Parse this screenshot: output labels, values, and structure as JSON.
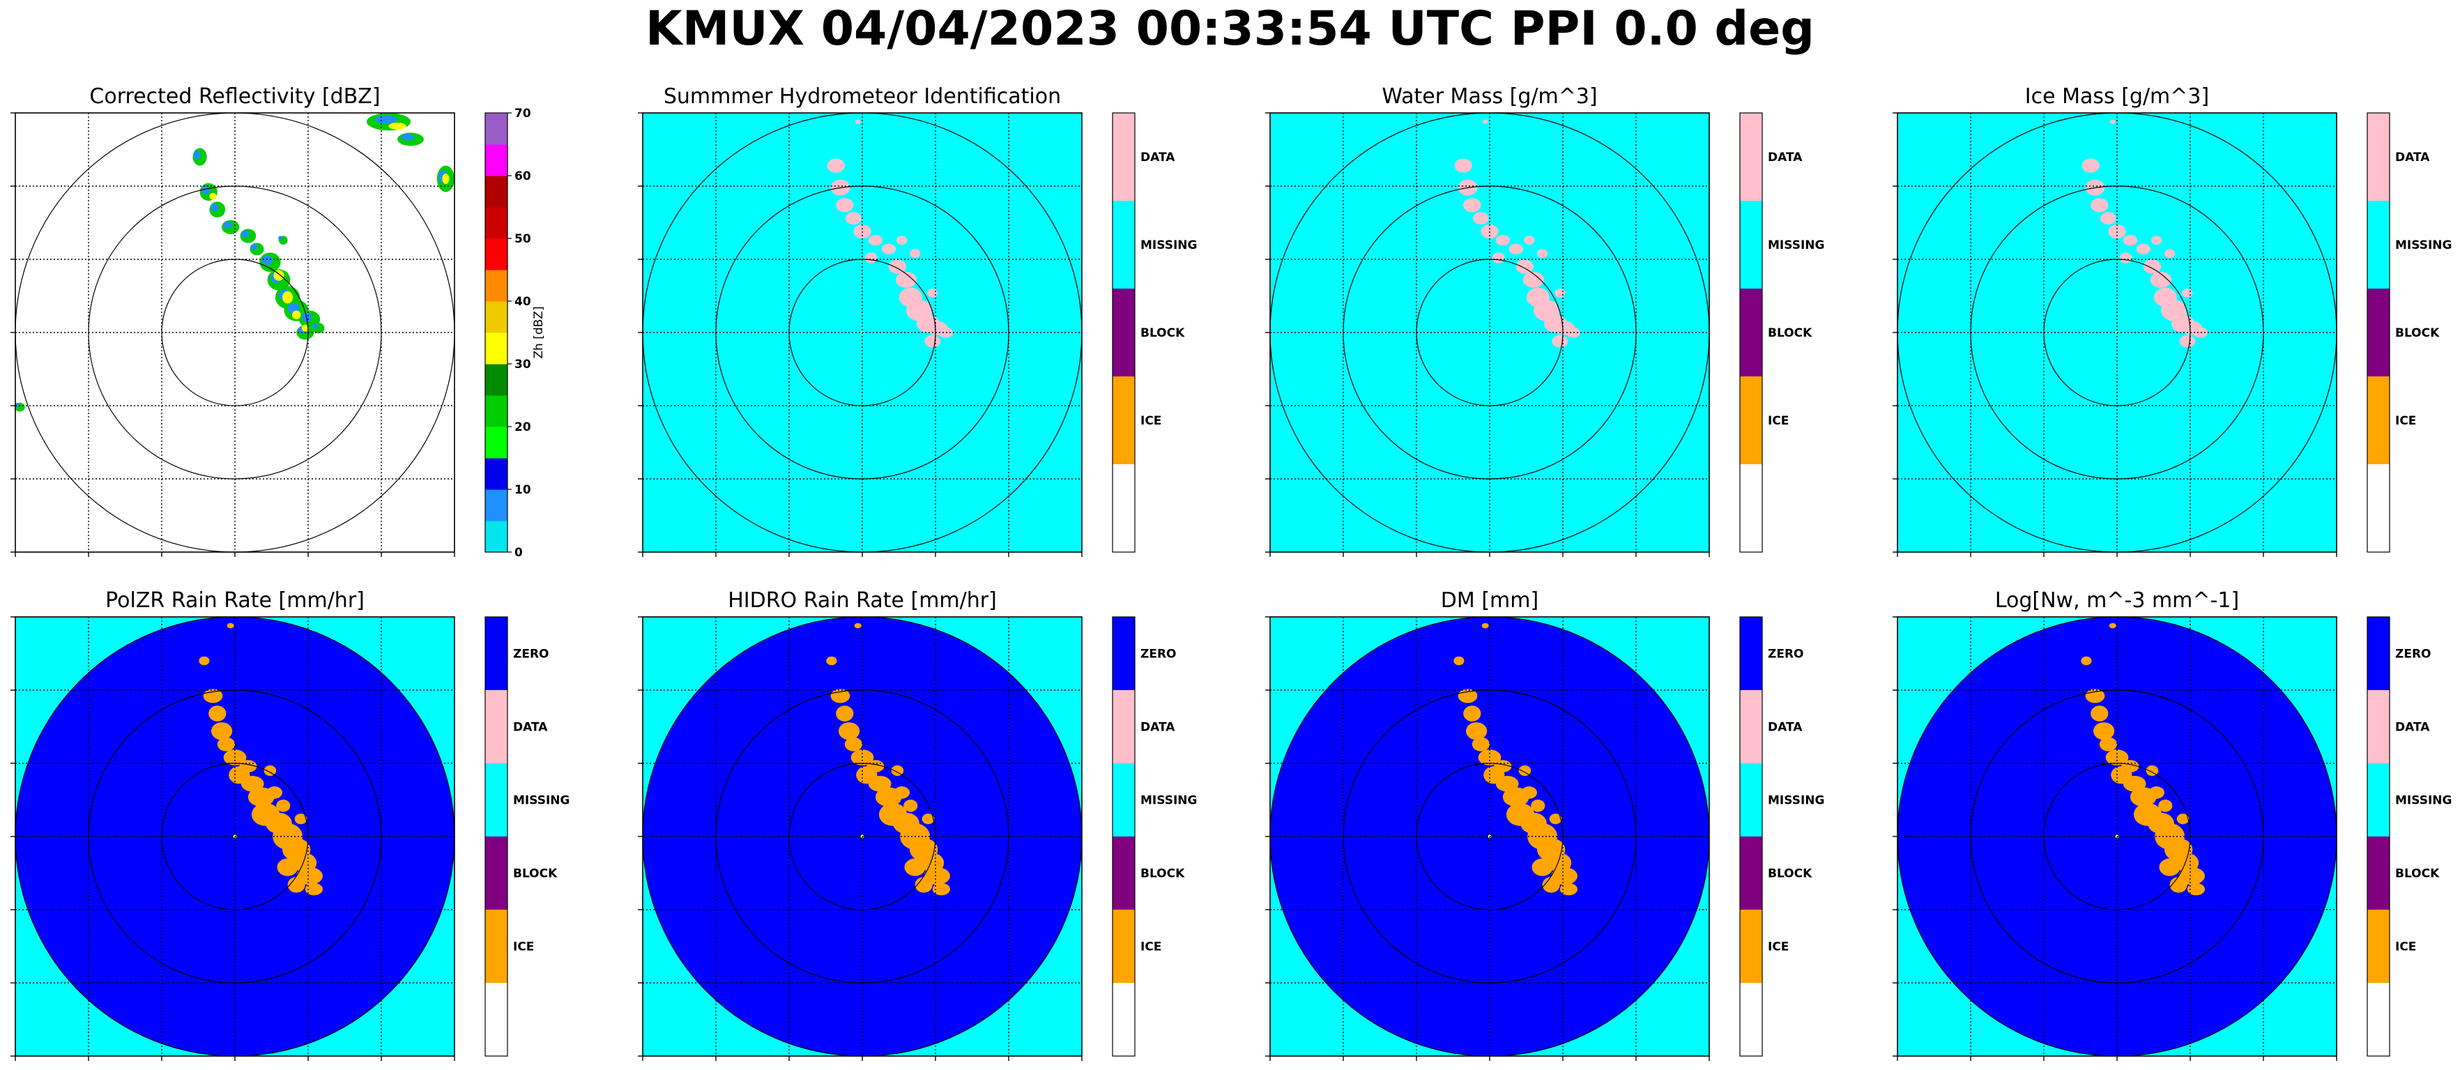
{
  "figure": {
    "title": "KMUX 04/04/2023 00:33:54 UTC PPI 0.0 deg"
  },
  "colors": {
    "missing": "#00FFFF",
    "zero": "#0000FF",
    "data": "#FFC0CB",
    "block": "#800080",
    "ice": "#FFA500",
    "blank": "#FFFFFF",
    "rain_echo": "#FFA500"
  },
  "chart_data": [
    {
      "type": "heatmap",
      "title": "Corrected Reflectivity [dBZ]",
      "variable": "reflectivity",
      "background": "#FFFFFF",
      "colorbar": {
        "kind": "continuous",
        "label": "Zh [dBZ]",
        "range": [
          0,
          70
        ],
        "ticks": [
          "0",
          "10",
          "20",
          "30",
          "40",
          "50",
          "60",
          "70"
        ],
        "bins": [
          {
            "from": 0,
            "to": 5,
            "color": "#00E5EE"
          },
          {
            "from": 5,
            "to": 10,
            "color": "#1E90FF"
          },
          {
            "from": 10,
            "to": 15,
            "color": "#0000EE"
          },
          {
            "from": 15,
            "to": 20,
            "color": "#00FF00"
          },
          {
            "from": 20,
            "to": 25,
            "color": "#00CD00"
          },
          {
            "from": 25,
            "to": 30,
            "color": "#008B00"
          },
          {
            "from": 30,
            "to": 35,
            "color": "#FFFF00"
          },
          {
            "from": 35,
            "to": 40,
            "color": "#EEC900"
          },
          {
            "from": 40,
            "to": 45,
            "color": "#FF8C00"
          },
          {
            "from": 45,
            "to": 50,
            "color": "#FF0000"
          },
          {
            "from": 50,
            "to": 55,
            "color": "#CD0000"
          },
          {
            "from": 55,
            "to": 60,
            "color": "#B00000"
          },
          {
            "from": 60,
            "to": 65,
            "color": "#FF00FF"
          },
          {
            "from": 65,
            "to": 70,
            "color": "#9A5CC6"
          }
        ]
      },
      "grid": true,
      "range_rings": 3
    },
    {
      "type": "heatmap",
      "title": "Summmer Hydrometeor Identification",
      "variable": "hid",
      "background": "#00FFFF",
      "colorbar": {
        "kind": "categorical",
        "categories": [
          {
            "label": "DATA",
            "color": "#FFC0CB"
          },
          {
            "label": "MISSING",
            "color": "#00FFFF"
          },
          {
            "label": "BLOCK",
            "color": "#800080"
          },
          {
            "label": "ICE",
            "color": "#FFA500"
          },
          {
            "label": "",
            "color": "#FFFFFF"
          }
        ]
      },
      "grid": true,
      "range_rings": 3
    },
    {
      "type": "heatmap",
      "title": "Water Mass [g/m^3]",
      "variable": "water_mass",
      "background": "#00FFFF",
      "colorbar": {
        "kind": "categorical",
        "categories": [
          {
            "label": "DATA",
            "color": "#FFC0CB"
          },
          {
            "label": "MISSING",
            "color": "#00FFFF"
          },
          {
            "label": "BLOCK",
            "color": "#800080"
          },
          {
            "label": "ICE",
            "color": "#FFA500"
          },
          {
            "label": "",
            "color": "#FFFFFF"
          }
        ]
      },
      "grid": true,
      "range_rings": 3
    },
    {
      "type": "heatmap",
      "title": "Ice Mass [g/m^3]",
      "variable": "ice_mass",
      "background": "#00FFFF",
      "colorbar": {
        "kind": "categorical",
        "categories": [
          {
            "label": "DATA",
            "color": "#FFC0CB"
          },
          {
            "label": "MISSING",
            "color": "#00FFFF"
          },
          {
            "label": "BLOCK",
            "color": "#800080"
          },
          {
            "label": "ICE",
            "color": "#FFA500"
          },
          {
            "label": "",
            "color": "#FFFFFF"
          }
        ]
      },
      "grid": true,
      "range_rings": 3
    },
    {
      "type": "heatmap",
      "title": "PolZR Rain Rate [mm/hr]",
      "variable": "polzr_rain_rate",
      "background": "#00FFFF",
      "range_fill": "#0000FF",
      "colorbar": {
        "kind": "categorical",
        "categories": [
          {
            "label": "ZERO",
            "color": "#0000FF"
          },
          {
            "label": "DATA",
            "color": "#FFC0CB"
          },
          {
            "label": "MISSING",
            "color": "#00FFFF"
          },
          {
            "label": "BLOCK",
            "color": "#800080"
          },
          {
            "label": "ICE",
            "color": "#FFA500"
          },
          {
            "label": "",
            "color": "#FFFFFF"
          }
        ]
      },
      "grid": true,
      "range_rings": 3
    },
    {
      "type": "heatmap",
      "title": "HIDRO Rain Rate [mm/hr]",
      "variable": "hidro_rain_rate",
      "background": "#00FFFF",
      "range_fill": "#0000FF",
      "colorbar": {
        "kind": "categorical",
        "categories": [
          {
            "label": "ZERO",
            "color": "#0000FF"
          },
          {
            "label": "DATA",
            "color": "#FFC0CB"
          },
          {
            "label": "MISSING",
            "color": "#00FFFF"
          },
          {
            "label": "BLOCK",
            "color": "#800080"
          },
          {
            "label": "ICE",
            "color": "#FFA500"
          },
          {
            "label": "",
            "color": "#FFFFFF"
          }
        ]
      },
      "grid": true,
      "range_rings": 3
    },
    {
      "type": "heatmap",
      "title": "DM [mm]",
      "variable": "dm",
      "background": "#00FFFF",
      "range_fill": "#0000FF",
      "colorbar": {
        "kind": "categorical",
        "categories": [
          {
            "label": "ZERO",
            "color": "#0000FF"
          },
          {
            "label": "DATA",
            "color": "#FFC0CB"
          },
          {
            "label": "MISSING",
            "color": "#00FFFF"
          },
          {
            "label": "BLOCK",
            "color": "#800080"
          },
          {
            "label": "ICE",
            "color": "#FFA500"
          },
          {
            "label": "",
            "color": "#FFFFFF"
          }
        ]
      },
      "grid": true,
      "range_rings": 3
    },
    {
      "type": "heatmap",
      "title": "Log[Nw, m^-3 mm^-1]",
      "variable": "log_nw",
      "background": "#00FFFF",
      "range_fill": "#0000FF",
      "colorbar": {
        "kind": "categorical",
        "categories": [
          {
            "label": "ZERO",
            "color": "#0000FF"
          },
          {
            "label": "DATA",
            "color": "#FFC0CB"
          },
          {
            "label": "MISSING",
            "color": "#00FFFF"
          },
          {
            "label": "BLOCK",
            "color": "#800080"
          },
          {
            "label": "ICE",
            "color": "#FFA500"
          },
          {
            "label": "",
            "color": "#FFFFFF"
          }
        ]
      },
      "grid": true,
      "range_rings": 3
    }
  ]
}
